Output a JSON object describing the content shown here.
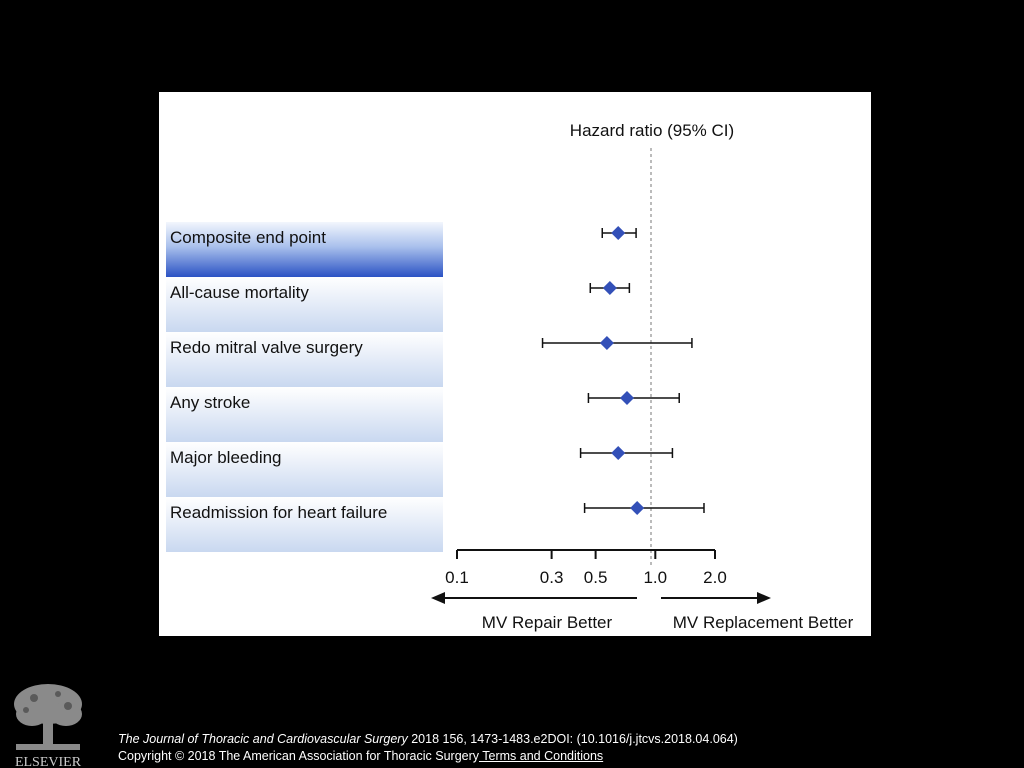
{
  "colors": {
    "background": "#000000",
    "figure_bg": "#ffffff",
    "marker": "#3350b8",
    "row_band_light": "#e6eefa",
    "row_band_dark": "#2f56c6",
    "text": "#111111"
  },
  "chart_data": {
    "type": "forest",
    "title": "Hazard ratio (95% CI)",
    "scale": "log",
    "reference_value": 1.0,
    "reference_line": "dashed",
    "x_ticks": [
      0.1,
      0.3,
      0.5,
      1.0,
      2.0
    ],
    "x_tick_labels": [
      "0.1",
      "0.3",
      "0.5",
      "1.0",
      "2.0"
    ],
    "direction_left": "MV Repair Better",
    "direction_right": "MV Replacement Better",
    "rows": [
      {
        "label": "Composite end point",
        "hr": 0.65,
        "ci_low": 0.54,
        "ci_high": 0.8,
        "highlight": true
      },
      {
        "label": "All-cause mortality",
        "hr": 0.59,
        "ci_low": 0.47,
        "ci_high": 0.74,
        "highlight": false
      },
      {
        "label": "Redo mitral valve surgery",
        "hr": 0.57,
        "ci_low": 0.27,
        "ci_high": 1.53,
        "highlight": false
      },
      {
        "label": "Any stroke",
        "hr": 0.72,
        "ci_low": 0.46,
        "ci_high": 1.32,
        "highlight": false
      },
      {
        "label": "Major bleeding",
        "hr": 0.65,
        "ci_low": 0.42,
        "ci_high": 1.22,
        "highlight": false
      },
      {
        "label": "Readmission for heart failure",
        "hr": 0.81,
        "ci_low": 0.44,
        "ci_high": 1.76,
        "highlight": false
      }
    ]
  },
  "footer": {
    "publisher": "ELSEVIER",
    "journal": "The Journal of Thoracic and Cardiovascular Surgery",
    "citation_rest": " 2018 156, 1473-1483.e2DOI: (10.1016/j.jtcvs.2018.04.064)",
    "copyright": "Copyright © 2018 The American Association for Thoracic Surgery",
    "terms_link": " Terms and Conditions"
  }
}
